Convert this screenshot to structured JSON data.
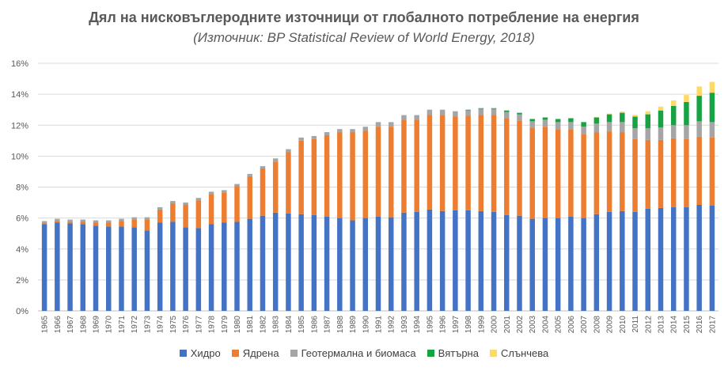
{
  "chart_data": {
    "type": "bar",
    "stacked": true,
    "title": "Дял на нисковъглеродните  източници от глобалното  потребление на енергия",
    "subtitle": "(Източник: BP Statistical Review of World Energy, 2018)",
    "ylim": [
      0,
      16
    ],
    "ytick_values": [
      0,
      2,
      4,
      6,
      8,
      10,
      12,
      14,
      16
    ],
    "ytick_labels": [
      "0%",
      "2%",
      "4%",
      "6%",
      "8%",
      "10%",
      "12%",
      "14%",
      "16%"
    ],
    "grid": true,
    "legend_position": "bottom",
    "categories": [
      "1965",
      "1966",
      "1967",
      "1968",
      "1969",
      "1970",
      "1971",
      "1972",
      "1973",
      "1974",
      "1975",
      "1976",
      "1977",
      "1978",
      "1979",
      "1980",
      "1981",
      "1982",
      "1983",
      "1984",
      "1985",
      "1986",
      "1987",
      "1988",
      "1989",
      "1990",
      "1991",
      "1992",
      "1993",
      "1994",
      "1995",
      "1996",
      "1997",
      "1998",
      "1999",
      "2000",
      "2001",
      "2002",
      "2003",
      "2004",
      "2005",
      "2006",
      "2007",
      "2008",
      "2009",
      "2010",
      "2011",
      "2012",
      "2013",
      "2014",
      "2015",
      "2016",
      "2017"
    ],
    "series": [
      {
        "name": "Хидро",
        "color": "#4472c4",
        "values": [
          5.6,
          5.7,
          5.65,
          5.6,
          5.5,
          5.45,
          5.45,
          5.4,
          5.2,
          5.7,
          5.75,
          5.4,
          5.35,
          5.6,
          5.7,
          5.75,
          5.95,
          6.15,
          6.35,
          6.3,
          6.25,
          6.2,
          6.1,
          6.0,
          5.85,
          6.0,
          6.1,
          6.05,
          6.35,
          6.4,
          6.55,
          6.45,
          6.5,
          6.5,
          6.45,
          6.4,
          6.2,
          6.15,
          5.95,
          6.0,
          6.0,
          6.1,
          6.0,
          6.25,
          6.4,
          6.45,
          6.4,
          6.6,
          6.65,
          6.7,
          6.7,
          6.85,
          6.8
        ]
      },
      {
        "name": "Ядрена",
        "color": "#ed7d31",
        "values": [
          0.05,
          0.1,
          0.1,
          0.15,
          0.2,
          0.25,
          0.35,
          0.5,
          0.7,
          0.85,
          1.2,
          1.45,
          1.8,
          1.95,
          1.95,
          2.3,
          2.75,
          3.05,
          3.3,
          3.95,
          4.75,
          4.9,
          5.25,
          5.55,
          5.7,
          5.65,
          5.8,
          5.85,
          6.0,
          5.95,
          6.1,
          6.2,
          6.05,
          6.1,
          6.2,
          6.25,
          6.25,
          6.15,
          5.9,
          5.9,
          5.75,
          5.65,
          5.4,
          5.3,
          5.2,
          5.1,
          4.7,
          4.45,
          4.4,
          4.45,
          4.4,
          4.4,
          4.4
        ]
      },
      {
        "name": "Геотермална и биомаса",
        "color": "#a5a5a5",
        "values": [
          0.15,
          0.15,
          0.15,
          0.15,
          0.15,
          0.15,
          0.15,
          0.15,
          0.15,
          0.15,
          0.15,
          0.15,
          0.15,
          0.15,
          0.15,
          0.15,
          0.15,
          0.15,
          0.2,
          0.2,
          0.2,
          0.2,
          0.2,
          0.2,
          0.2,
          0.25,
          0.3,
          0.3,
          0.3,
          0.3,
          0.35,
          0.35,
          0.35,
          0.35,
          0.4,
          0.4,
          0.4,
          0.4,
          0.4,
          0.45,
          0.45,
          0.45,
          0.5,
          0.55,
          0.6,
          0.65,
          0.7,
          0.75,
          0.8,
          0.85,
          0.9,
          1.0,
          1.0
        ]
      },
      {
        "name": "Вятърна",
        "color": "#17a344",
        "values": [
          0,
          0,
          0,
          0,
          0,
          0,
          0,
          0,
          0,
          0,
          0,
          0,
          0,
          0,
          0,
          0,
          0,
          0,
          0,
          0,
          0,
          0,
          0,
          0,
          0,
          0,
          0,
          0,
          0,
          0,
          0,
          0,
          0,
          0.05,
          0.05,
          0.05,
          0.1,
          0.1,
          0.15,
          0.15,
          0.2,
          0.25,
          0.3,
          0.4,
          0.5,
          0.6,
          0.75,
          0.9,
          1.1,
          1.25,
          1.5,
          1.65,
          1.9
        ]
      },
      {
        "name": "Слънчева",
        "color": "#ffd966",
        "values": [
          0,
          0,
          0,
          0,
          0,
          0,
          0,
          0,
          0,
          0,
          0,
          0,
          0,
          0,
          0,
          0,
          0,
          0,
          0,
          0,
          0,
          0,
          0,
          0,
          0,
          0,
          0,
          0,
          0,
          0,
          0,
          0,
          0,
          0,
          0,
          0,
          0,
          0,
          0,
          0,
          0,
          0,
          0,
          0.02,
          0.05,
          0.08,
          0.12,
          0.2,
          0.25,
          0.35,
          0.45,
          0.6,
          0.7
        ]
      }
    ]
  }
}
